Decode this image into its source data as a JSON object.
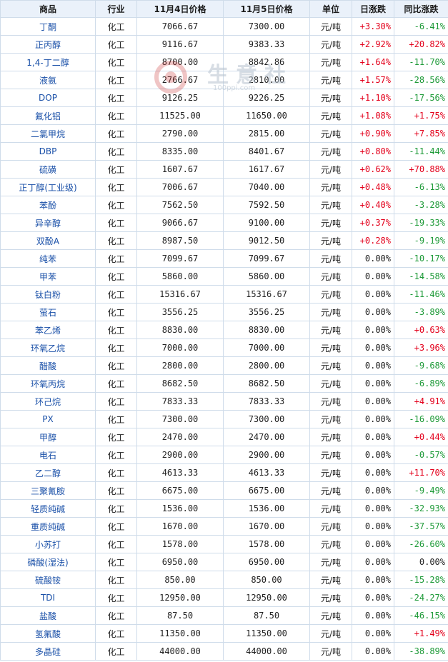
{
  "headers": [
    "商品",
    "行业",
    "11月4日价格",
    "11月5日价格",
    "单位",
    "日涨跌",
    "同比涨跌"
  ],
  "watermark": {
    "text": "生意社",
    "sub": "100ppi.com"
  },
  "rows": [
    {
      "name": "丁酮",
      "industry": "化工",
      "p1": "7066.67",
      "p2": "7300.00",
      "unit": "元/吨",
      "day": "+3.30%",
      "yoy": "-6.41%"
    },
    {
      "name": "正丙醇",
      "industry": "化工",
      "p1": "9116.67",
      "p2": "9383.33",
      "unit": "元/吨",
      "day": "+2.92%",
      "yoy": "+20.82%"
    },
    {
      "name": "1,4-丁二醇",
      "industry": "化工",
      "p1": "8700.00",
      "p2": "8842.86",
      "unit": "元/吨",
      "day": "+1.64%",
      "yoy": "-11.70%"
    },
    {
      "name": "液氨",
      "industry": "化工",
      "p1": "2766.67",
      "p2": "2810.00",
      "unit": "元/吨",
      "day": "+1.57%",
      "yoy": "-28.56%"
    },
    {
      "name": "DOP",
      "industry": "化工",
      "p1": "9126.25",
      "p2": "9226.25",
      "unit": "元/吨",
      "day": "+1.10%",
      "yoy": "-17.56%"
    },
    {
      "name": "氟化铝",
      "industry": "化工",
      "p1": "11525.00",
      "p2": "11650.00",
      "unit": "元/吨",
      "day": "+1.08%",
      "yoy": "+1.75%"
    },
    {
      "name": "二氯甲烷",
      "industry": "化工",
      "p1": "2790.00",
      "p2": "2815.00",
      "unit": "元/吨",
      "day": "+0.90%",
      "yoy": "+7.85%"
    },
    {
      "name": "DBP",
      "industry": "化工",
      "p1": "8335.00",
      "p2": "8401.67",
      "unit": "元/吨",
      "day": "+0.80%",
      "yoy": "-11.44%"
    },
    {
      "name": "硫磺",
      "industry": "化工",
      "p1": "1607.67",
      "p2": "1617.67",
      "unit": "元/吨",
      "day": "+0.62%",
      "yoy": "+70.88%"
    },
    {
      "name": "正丁醇(工业级)",
      "industry": "化工",
      "p1": "7006.67",
      "p2": "7040.00",
      "unit": "元/吨",
      "day": "+0.48%",
      "yoy": "-6.13%"
    },
    {
      "name": "苯酚",
      "industry": "化工",
      "p1": "7562.50",
      "p2": "7592.50",
      "unit": "元/吨",
      "day": "+0.40%",
      "yoy": "-3.28%"
    },
    {
      "name": "异辛醇",
      "industry": "化工",
      "p1": "9066.67",
      "p2": "9100.00",
      "unit": "元/吨",
      "day": "+0.37%",
      "yoy": "-19.33%"
    },
    {
      "name": "双酚A",
      "industry": "化工",
      "p1": "8987.50",
      "p2": "9012.50",
      "unit": "元/吨",
      "day": "+0.28%",
      "yoy": "-9.19%"
    },
    {
      "name": "纯苯",
      "industry": "化工",
      "p1": "7099.67",
      "p2": "7099.67",
      "unit": "元/吨",
      "day": "0.00%",
      "yoy": "-10.17%"
    },
    {
      "name": "甲苯",
      "industry": "化工",
      "p1": "5860.00",
      "p2": "5860.00",
      "unit": "元/吨",
      "day": "0.00%",
      "yoy": "-14.58%"
    },
    {
      "name": "钛白粉",
      "industry": "化工",
      "p1": "15316.67",
      "p2": "15316.67",
      "unit": "元/吨",
      "day": "0.00%",
      "yoy": "-11.46%"
    },
    {
      "name": "萤石",
      "industry": "化工",
      "p1": "3556.25",
      "p2": "3556.25",
      "unit": "元/吨",
      "day": "0.00%",
      "yoy": "-3.89%"
    },
    {
      "name": "苯乙烯",
      "industry": "化工",
      "p1": "8830.00",
      "p2": "8830.00",
      "unit": "元/吨",
      "day": "0.00%",
      "yoy": "+0.63%"
    },
    {
      "name": "环氧乙烷",
      "industry": "化工",
      "p1": "7000.00",
      "p2": "7000.00",
      "unit": "元/吨",
      "day": "0.00%",
      "yoy": "+3.96%"
    },
    {
      "name": "醋酸",
      "industry": "化工",
      "p1": "2800.00",
      "p2": "2800.00",
      "unit": "元/吨",
      "day": "0.00%",
      "yoy": "-9.68%"
    },
    {
      "name": "环氧丙烷",
      "industry": "化工",
      "p1": "8682.50",
      "p2": "8682.50",
      "unit": "元/吨",
      "day": "0.00%",
      "yoy": "-6.89%"
    },
    {
      "name": "环己烷",
      "industry": "化工",
      "p1": "7833.33",
      "p2": "7833.33",
      "unit": "元/吨",
      "day": "0.00%",
      "yoy": "+4.91%"
    },
    {
      "name": "PX",
      "industry": "化工",
      "p1": "7300.00",
      "p2": "7300.00",
      "unit": "元/吨",
      "day": "0.00%",
      "yoy": "-16.09%"
    },
    {
      "name": "甲醇",
      "industry": "化工",
      "p1": "2470.00",
      "p2": "2470.00",
      "unit": "元/吨",
      "day": "0.00%",
      "yoy": "+0.44%"
    },
    {
      "name": "电石",
      "industry": "化工",
      "p1": "2900.00",
      "p2": "2900.00",
      "unit": "元/吨",
      "day": "0.00%",
      "yoy": "-0.57%"
    },
    {
      "name": "乙二醇",
      "industry": "化工",
      "p1": "4613.33",
      "p2": "4613.33",
      "unit": "元/吨",
      "day": "0.00%",
      "yoy": "+11.70%"
    },
    {
      "name": "三聚氰胺",
      "industry": "化工",
      "p1": "6675.00",
      "p2": "6675.00",
      "unit": "元/吨",
      "day": "0.00%",
      "yoy": "-9.49%"
    },
    {
      "name": "轻质纯碱",
      "industry": "化工",
      "p1": "1536.00",
      "p2": "1536.00",
      "unit": "元/吨",
      "day": "0.00%",
      "yoy": "-32.93%"
    },
    {
      "name": "重质纯碱",
      "industry": "化工",
      "p1": "1670.00",
      "p2": "1670.00",
      "unit": "元/吨",
      "day": "0.00%",
      "yoy": "-37.57%"
    },
    {
      "name": "小苏打",
      "industry": "化工",
      "p1": "1578.00",
      "p2": "1578.00",
      "unit": "元/吨",
      "day": "0.00%",
      "yoy": "-26.60%"
    },
    {
      "name": "磷酸(湿法)",
      "industry": "化工",
      "p1": "6950.00",
      "p2": "6950.00",
      "unit": "元/吨",
      "day": "0.00%",
      "yoy": "0.00%"
    },
    {
      "name": "硫酸铵",
      "industry": "化工",
      "p1": "850.00",
      "p2": "850.00",
      "unit": "元/吨",
      "day": "0.00%",
      "yoy": "-15.28%"
    },
    {
      "name": "TDI",
      "industry": "化工",
      "p1": "12950.00",
      "p2": "12950.00",
      "unit": "元/吨",
      "day": "0.00%",
      "yoy": "-24.27%"
    },
    {
      "name": "盐酸",
      "industry": "化工",
      "p1": "87.50",
      "p2": "87.50",
      "unit": "元/吨",
      "day": "0.00%",
      "yoy": "-46.15%"
    },
    {
      "name": "氢氟酸",
      "industry": "化工",
      "p1": "11350.00",
      "p2": "11350.00",
      "unit": "元/吨",
      "day": "0.00%",
      "yoy": "+1.49%"
    },
    {
      "name": "多晶硅",
      "industry": "化工",
      "p1": "44000.00",
      "p2": "44000.00",
      "unit": "元/吨",
      "day": "0.00%",
      "yoy": "-38.89%"
    }
  ]
}
